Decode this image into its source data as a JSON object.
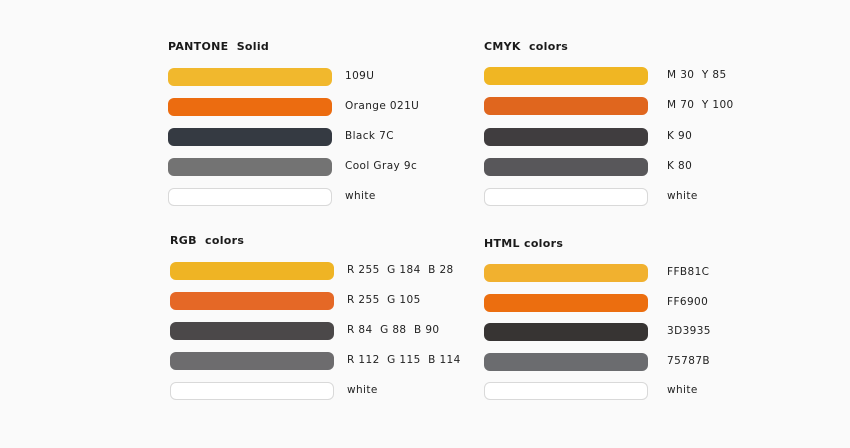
{
  "groups": [
    {
      "title": "PANTONE  Solid",
      "items": [
        {
          "label": "109U",
          "color": "#F1B82D",
          "white": false
        },
        {
          "label": "Orange 021U",
          "color": "#EC6C10",
          "white": false
        },
        {
          "label": "Black 7C",
          "color": "#353A42",
          "white": false
        },
        {
          "label": "Cool Gray 9c",
          "color": "#737373",
          "white": false
        },
        {
          "label": "white",
          "color": "#FFFFFF",
          "white": true
        }
      ]
    },
    {
      "title": "CMYK  colors",
      "items": [
        {
          "label": "M 30  Y 85",
          "color": "#F0B623",
          "white": false
        },
        {
          "label": "M 70  Y 100",
          "color": "#E0661E",
          "white": false
        },
        {
          "label": "K 90",
          "color": "#403D3F",
          "white": false
        },
        {
          "label": "K 80",
          "color": "#58575A",
          "white": false
        },
        {
          "label": "white",
          "color": "#FFFFFF",
          "white": true
        }
      ]
    },
    {
      "title": "RGB  colors",
      "items": [
        {
          "label": "R 255  G 184  B 28",
          "color": "#EFB424",
          "white": false
        },
        {
          "label": "R 255  G 105",
          "color": "#E56826",
          "white": false
        },
        {
          "label": "R 84  G 88  B 90",
          "color": "#4B4849",
          "white": false
        },
        {
          "label": "R 112  G 115  B 114",
          "color": "#6D6C6E",
          "white": false
        },
        {
          "label": "white",
          "color": "#FFFFFF",
          "white": true
        }
      ]
    },
    {
      "title": "HTML colors",
      "items": [
        {
          "label": "FFB81C",
          "color": "#F1B12F",
          "white": false
        },
        {
          "label": "FF6900",
          "color": "#EC6E0F",
          "white": false
        },
        {
          "label": "3D3935",
          "color": "#373433",
          "white": false
        },
        {
          "label": "75787B",
          "color": "#6B6C6F",
          "white": false
        },
        {
          "label": "white",
          "color": "#FFFFFF",
          "white": true
        }
      ]
    }
  ]
}
